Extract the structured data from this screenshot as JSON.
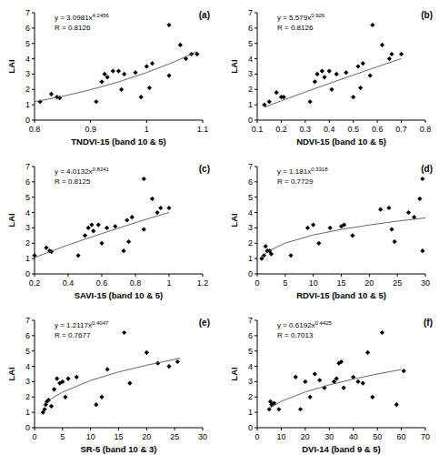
{
  "chart_data": [
    {
      "type": "scatter",
      "title": "(a)",
      "x_label": "TNDVI-15 (band 10 & 5)",
      "y_label": "LAI",
      "xlim": [
        0.8,
        1.1
      ],
      "xticks": [
        0.8,
        0.9,
        1,
        1.1
      ],
      "ylim": [
        0,
        7
      ],
      "yticks": [
        0,
        1,
        2,
        3,
        4,
        5,
        6,
        7
      ],
      "annotations": [
        {
          "text": "y = 3.0981x",
          "superscript": "4.2456"
        },
        {
          "text": "R = 0.8126"
        }
      ],
      "series": [
        {
          "type": "scatter",
          "marker": "diamond",
          "color": "#000000",
          "x": [
            0.81,
            0.83,
            0.84,
            0.845,
            0.91,
            0.92,
            0.925,
            0.93,
            0.94,
            0.95,
            0.955,
            0.96,
            0.98,
            0.99,
            1.0,
            1.005,
            1.01,
            1.04,
            1.04,
            1.06,
            1.07,
            1.08,
            1.09
          ],
          "values": [
            1.2,
            1.7,
            1.5,
            1.45,
            1.2,
            2.5,
            3.0,
            2.8,
            3.2,
            3.2,
            2.0,
            3.0,
            3.1,
            1.5,
            3.5,
            2.1,
            3.7,
            2.9,
            6.2,
            4.9,
            4.0,
            4.3,
            4.3
          ]
        },
        {
          "type": "line",
          "line_style": "solid",
          "color": "#555555",
          "x": [
            0.8,
            0.85,
            0.9,
            0.95,
            1.0,
            1.05,
            1.09
          ],
          "values": [
            1.2,
            1.55,
            1.98,
            2.49,
            3.1,
            3.81,
            4.47
          ]
        }
      ]
    },
    {
      "type": "scatter",
      "title": "(b)",
      "x_label": "NDVI-15 (band 10 & 5)",
      "y_label": "LAI",
      "xlim": [
        0.1,
        0.8
      ],
      "xticks": [
        0.1,
        0.2,
        0.3,
        0.4,
        0.5,
        0.6,
        0.7,
        0.8
      ],
      "ylim": [
        0,
        7
      ],
      "yticks": [
        0,
        1,
        2,
        3,
        4,
        5,
        6,
        7
      ],
      "annotations": [
        {
          "text": "y = 5.579x",
          "superscript": "0.926"
        },
        {
          "text": "R = 0.8126"
        }
      ],
      "series": [
        {
          "type": "scatter",
          "marker": "diamond",
          "color": "#000000",
          "x": [
            0.13,
            0.15,
            0.18,
            0.2,
            0.21,
            0.32,
            0.34,
            0.35,
            0.37,
            0.38,
            0.4,
            0.41,
            0.43,
            0.47,
            0.5,
            0.52,
            0.53,
            0.54,
            0.57,
            0.58,
            0.62,
            0.65,
            0.66,
            0.7
          ],
          "values": [
            1.0,
            1.2,
            1.8,
            1.5,
            1.5,
            1.2,
            2.5,
            3.0,
            3.2,
            2.8,
            3.2,
            2.0,
            3.0,
            3.1,
            1.5,
            3.5,
            2.1,
            3.7,
            2.9,
            6.2,
            4.9,
            4.0,
            4.3,
            4.3
          ]
        },
        {
          "type": "line",
          "line_style": "solid",
          "color": "#555555",
          "x": [
            0.13,
            0.2,
            0.3,
            0.4,
            0.5,
            0.6,
            0.7
          ],
          "values": [
            0.84,
            1.26,
            1.83,
            2.39,
            2.94,
            3.48,
            4.01
          ]
        }
      ]
    },
    {
      "type": "scatter",
      "title": "(c)",
      "x_label": "SAVI-15 (band 10 & 5)",
      "y_label": "LAI",
      "xlim": [
        0.2,
        1.2
      ],
      "xticks": [
        0.2,
        0.4,
        0.6,
        0.8,
        1,
        1.2
      ],
      "ylim": [
        0,
        7
      ],
      "yticks": [
        0,
        1,
        2,
        3,
        4,
        5,
        6,
        7
      ],
      "annotations": [
        {
          "text": "y = 4.0132x",
          "superscript": "0.8241"
        },
        {
          "text": "R = 0.8125"
        }
      ],
      "series": [
        {
          "type": "scatter",
          "marker": "diamond",
          "color": "#000000",
          "x": [
            0.2,
            0.27,
            0.29,
            0.3,
            0.46,
            0.5,
            0.52,
            0.54,
            0.55,
            0.58,
            0.6,
            0.63,
            0.68,
            0.73,
            0.75,
            0.76,
            0.78,
            0.85,
            0.85,
            0.9,
            0.93,
            0.95,
            1.0
          ],
          "values": [
            1.2,
            1.7,
            1.5,
            1.45,
            1.2,
            2.5,
            3.0,
            3.2,
            2.8,
            3.2,
            2.0,
            3.0,
            3.1,
            1.5,
            3.5,
            2.1,
            3.7,
            2.9,
            6.2,
            4.9,
            4.0,
            4.3,
            4.3
          ]
        },
        {
          "type": "line",
          "line_style": "solid",
          "color": "#555555",
          "x": [
            0.2,
            0.4,
            0.6,
            0.8,
            1.0
          ],
          "values": [
            1.07,
            1.89,
            2.63,
            3.34,
            4.01
          ]
        }
      ]
    },
    {
      "type": "scatter",
      "title": "(d)",
      "x_label": "RDVI-15 (band 10 & 5)",
      "y_label": "LAI",
      "xlim": [
        0,
        30
      ],
      "xticks": [
        0,
        5,
        10,
        15,
        20,
        25,
        30
      ],
      "ylim": [
        0,
        7
      ],
      "yticks": [
        0,
        1,
        2,
        3,
        4,
        5,
        6,
        7
      ],
      "annotations": [
        {
          "text": "y = 1.181x",
          "superscript": "0.3318"
        },
        {
          "text": "R = 0.7729"
        }
      ],
      "series": [
        {
          "type": "scatter",
          "marker": "diamond",
          "color": "#000000",
          "x": [
            0.8,
            1.2,
            1.5,
            1.8,
            2.2,
            2.5,
            6,
            9,
            10,
            11,
            13,
            15,
            15.5,
            17,
            22,
            23.5,
            24,
            24.5,
            27,
            28,
            29,
            29.5,
            29.5
          ],
          "values": [
            1.0,
            1.2,
            1.8,
            1.5,
            1.5,
            1.3,
            1.2,
            3.0,
            3.2,
            2.0,
            3.0,
            3.1,
            3.2,
            2.5,
            4.2,
            4.3,
            2.9,
            2.1,
            4.0,
            3.7,
            4.9,
            6.2,
            1.5
          ]
        },
        {
          "type": "line",
          "line_style": "solid",
          "color": "#555555",
          "x": [
            0.8,
            2,
            5,
            10,
            15,
            20,
            25,
            30
          ],
          "values": [
            1.1,
            1.49,
            2.01,
            2.54,
            2.9,
            3.19,
            3.44,
            3.65
          ]
        }
      ]
    },
    {
      "type": "scatter",
      "title": "(e)",
      "x_label": "SR-5 (band 10 & 3)",
      "y_label": "LAI",
      "xlim": [
        0,
        30
      ],
      "xticks": [
        0,
        5,
        10,
        15,
        20,
        25,
        30
      ],
      "ylim": [
        0,
        7
      ],
      "yticks": [
        0,
        1,
        2,
        3,
        4,
        5,
        6,
        7
      ],
      "annotations": [
        {
          "text": "y = 1.2117x",
          "superscript": "0.4047"
        },
        {
          "text": "R = 0.7677"
        }
      ],
      "series": [
        {
          "type": "scatter",
          "marker": "diamond",
          "color": "#000000",
          "x": [
            1.5,
            1.8,
            2,
            2.2,
            2.5,
            3,
            3.5,
            4,
            4.5,
            5,
            5.5,
            6,
            7.5,
            11,
            12,
            13,
            16,
            17,
            20,
            22,
            24,
            25.5
          ],
          "values": [
            1.0,
            1.2,
            1.5,
            1.7,
            1.8,
            1.4,
            2.5,
            3.2,
            2.9,
            3.0,
            2.0,
            3.2,
            3.3,
            1.5,
            2.0,
            3.8,
            6.2,
            2.9,
            4.9,
            4.2,
            4.0,
            4.3
          ]
        },
        {
          "type": "line",
          "line_style": "solid",
          "color": "#555555",
          "x": [
            1.5,
            3,
            5,
            10,
            15,
            20,
            26
          ],
          "values": [
            1.43,
            1.89,
            2.32,
            3.08,
            3.63,
            4.07,
            4.53
          ]
        }
      ]
    },
    {
      "type": "scatter",
      "title": "(f)",
      "x_label": "DVI-14 (band 9 & 5)",
      "y_label": "LAI",
      "xlim": [
        0,
        70
      ],
      "xticks": [
        0,
        10,
        20,
        30,
        40,
        50,
        60,
        70
      ],
      "ylim": [
        0,
        7
      ],
      "yticks": [
        0,
        1,
        2,
        3,
        4,
        5,
        6,
        7
      ],
      "annotations": [
        {
          "text": "y = 0.6192x",
          "superscript": "0.4425"
        },
        {
          "text": "R = 0.7013"
        }
      ],
      "series": [
        {
          "type": "scatter",
          "marker": "diamond",
          "color": "#000000",
          "x": [
            5,
            5.5,
            6,
            7,
            9,
            16,
            18,
            20,
            22,
            24,
            26,
            28,
            32,
            33,
            34,
            35,
            36,
            40,
            42,
            44,
            46,
            48,
            52,
            58,
            61
          ],
          "values": [
            1.2,
            1.7,
            1.5,
            1.6,
            1.2,
            3.3,
            1.2,
            3.0,
            2.0,
            3.5,
            3.1,
            2.6,
            3.0,
            3.2,
            4.2,
            4.3,
            2.6,
            3.3,
            3.0,
            2.9,
            4.9,
            2.0,
            6.2,
            1.5,
            3.7
          ]
        },
        {
          "type": "line",
          "line_style": "solid",
          "color": "#555555",
          "x": [
            5,
            10,
            20,
            30,
            40,
            50,
            60
          ],
          "values": [
            1.26,
            1.72,
            2.33,
            2.79,
            3.17,
            3.5,
            3.79
          ]
        }
      ]
    }
  ]
}
